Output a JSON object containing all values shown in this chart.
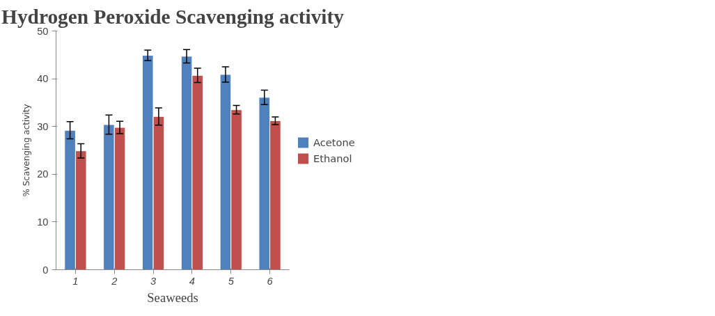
{
  "chart_data": {
    "type": "bar",
    "title": "Hydrogen Peroxide Scavenging activity",
    "xlabel": "Seaweeds",
    "ylabel": "% Scavenging activity",
    "categories": [
      "1",
      "2",
      "3",
      "4",
      "5",
      "6"
    ],
    "series": [
      {
        "name": "Acetone",
        "color": "#4f81bd",
        "values": [
          29.2,
          30.4,
          44.9,
          44.7,
          40.9,
          36.1
        ],
        "errors": [
          1.8,
          2.0,
          1.1,
          1.4,
          1.6,
          1.5
        ]
      },
      {
        "name": "Ethanol",
        "color": "#c0504d",
        "values": [
          24.9,
          29.8,
          32.1,
          40.7,
          33.5,
          31.2
        ],
        "errors": [
          1.5,
          1.3,
          1.8,
          1.5,
          0.9,
          0.8
        ]
      }
    ],
    "ylim": [
      0,
      50
    ],
    "yticks": [
      0,
      10,
      20,
      30,
      40,
      50
    ],
    "grid": false,
    "legend": "right"
  }
}
